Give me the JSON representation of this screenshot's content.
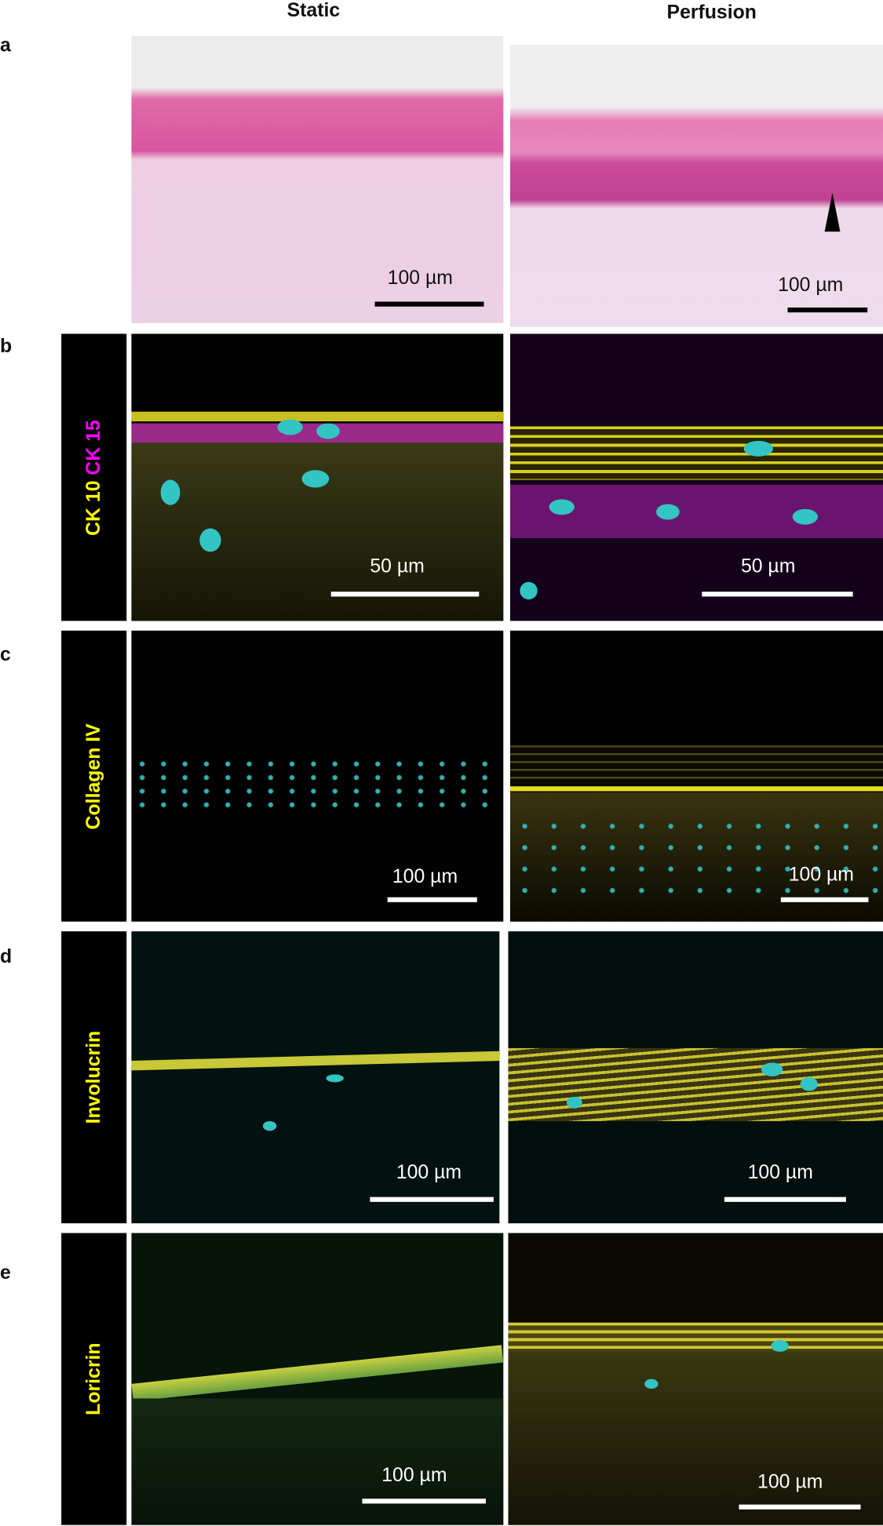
{
  "columns": [
    "Static",
    "Perfusion"
  ],
  "rows": [
    {
      "letter": "a",
      "label": "",
      "scale_bars": [
        "100 µm",
        "100 µm"
      ]
    },
    {
      "letter": "b",
      "label_parts": [
        "CK 10",
        "CK 15"
      ],
      "label_colors": [
        "#ffff00",
        "#ff00ff"
      ],
      "scale_bars": [
        "50 µm",
        "50 µm"
      ]
    },
    {
      "letter": "c",
      "label": "Collagen IV",
      "label_color": "#ffff00",
      "scale_bars": [
        "100 µm",
        "100 µm"
      ]
    },
    {
      "letter": "d",
      "label": "Involucrin",
      "label_color": "#ffff00",
      "scale_bars": [
        "100 µm",
        "100 µm"
      ]
    },
    {
      "letter": "e",
      "label": "Loricrin",
      "label_color": "#ffff00",
      "scale_bars": [
        "100 µm",
        "100 µm"
      ]
    }
  ],
  "annotations": {
    "arrowhead": "arrowhead-icon"
  }
}
